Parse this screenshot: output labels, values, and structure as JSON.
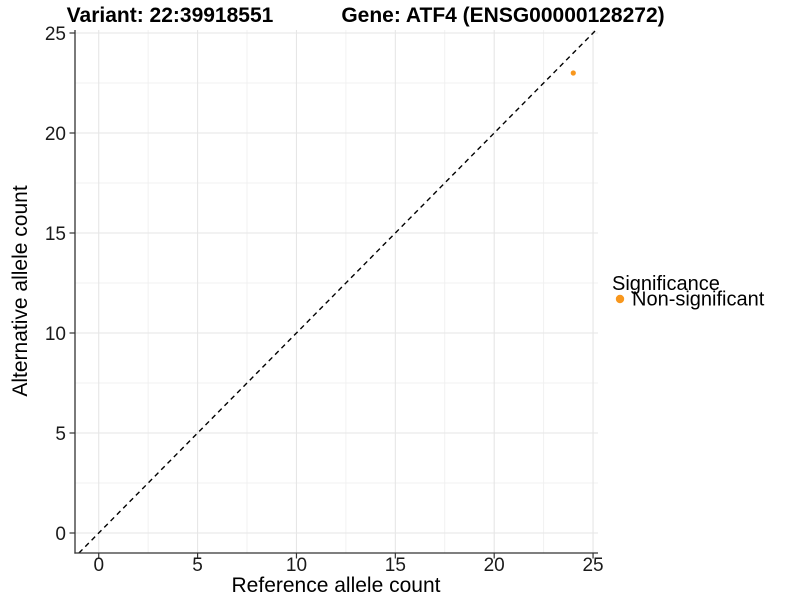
{
  "chart_data": {
    "type": "scatter",
    "titles": {
      "variant": "Variant: 22:39918551",
      "gene": "Gene: ATF4 (ENSG00000128272)"
    },
    "xlabel": "Reference allele count",
    "ylabel": "Alternative allele count",
    "xlim": [
      -1.2,
      25.25
    ],
    "ylim": [
      -1.0,
      25.15
    ],
    "x_ticks": [
      0,
      5,
      10,
      15,
      20,
      25
    ],
    "y_ticks": [
      0,
      5,
      10,
      15,
      20,
      25
    ],
    "x_minor_ticks": [
      2.5,
      7.5,
      12.5,
      17.5,
      22.5
    ],
    "y_minor_ticks": [
      2.5,
      7.5,
      12.5,
      17.5,
      22.5
    ],
    "grid": true,
    "identity_line": {
      "slope": 1,
      "intercept": 0,
      "style": "dashed",
      "color": "#000000"
    },
    "series": [
      {
        "name": "Non-significant",
        "color": "#F8971D",
        "points": [
          {
            "x": 24,
            "y": 23
          }
        ]
      }
    ],
    "legend": {
      "title": "Significance",
      "position": "right",
      "items": [
        {
          "label": "Non-significant",
          "color": "#F8971D"
        }
      ]
    },
    "colors": {
      "grid_major": "#e6e6e6",
      "grid_minor": "#f0f0f0",
      "axis_line": "#333333",
      "text": "#000000"
    }
  }
}
